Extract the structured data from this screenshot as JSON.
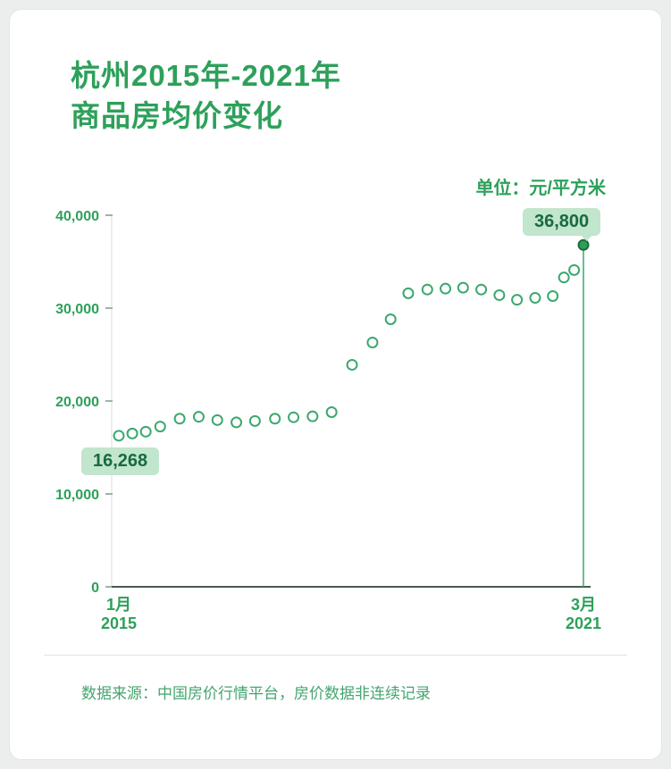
{
  "header": {
    "title_line1": "杭州2015年-2021年",
    "title_line2": "商品房均价变化",
    "unit_label": "单位：元/平方米"
  },
  "footer": {
    "source_note": "数据来源：中国房价行情平台，房价数据非连续记录"
  },
  "colors": {
    "green": "#2da05a",
    "point": "#3ba86e",
    "point_fill": "#2e9e58",
    "point_dark": "#1b6b3f",
    "axis": "#4a5a50",
    "grid": "#d8ddd9",
    "tick": "#9fb3a8",
    "badge_bg": "#c2e5cd",
    "badge_text": "#176b3e"
  },
  "chart_data": {
    "type": "scatter",
    "title": "杭州2015年-2021年商品房均价变化",
    "unit": "元/平方米",
    "ylim": [
      0,
      40000
    ],
    "yticks": [
      40000,
      30000,
      20000,
      10000,
      0
    ],
    "ytick_labels": [
      "40,000",
      "30,000",
      "20,000",
      "10,000",
      "0"
    ],
    "x_axis": {
      "start": [
        "1月",
        "2015"
      ],
      "end": [
        "3月",
        "2021"
      ]
    },
    "first_label": "16,268",
    "last_label": "36,800",
    "legend": "none",
    "grid": "off",
    "points": [
      {
        "x": 0.0,
        "v": 16268
      },
      {
        "x": 0.029,
        "v": 16500
      },
      {
        "x": 0.058,
        "v": 16700
      },
      {
        "x": 0.089,
        "v": 17250
      },
      {
        "x": 0.131,
        "v": 18100
      },
      {
        "x": 0.172,
        "v": 18300
      },
      {
        "x": 0.212,
        "v": 17950
      },
      {
        "x": 0.253,
        "v": 17700
      },
      {
        "x": 0.293,
        "v": 17850
      },
      {
        "x": 0.336,
        "v": 18100
      },
      {
        "x": 0.376,
        "v": 18250
      },
      {
        "x": 0.417,
        "v": 18350
      },
      {
        "x": 0.458,
        "v": 18800
      },
      {
        "x": 0.502,
        "v": 23900
      },
      {
        "x": 0.546,
        "v": 26300
      },
      {
        "x": 0.585,
        "v": 28800
      },
      {
        "x": 0.623,
        "v": 31600
      },
      {
        "x": 0.664,
        "v": 32000
      },
      {
        "x": 0.703,
        "v": 32100
      },
      {
        "x": 0.741,
        "v": 32200
      },
      {
        "x": 0.78,
        "v": 32000
      },
      {
        "x": 0.819,
        "v": 31400
      },
      {
        "x": 0.857,
        "v": 30900
      },
      {
        "x": 0.896,
        "v": 31100
      },
      {
        "x": 0.934,
        "v": 31300
      },
      {
        "x": 0.958,
        "v": 33300
      },
      {
        "x": 0.98,
        "v": 34100
      },
      {
        "x": 1.0,
        "v": 36800
      }
    ]
  }
}
